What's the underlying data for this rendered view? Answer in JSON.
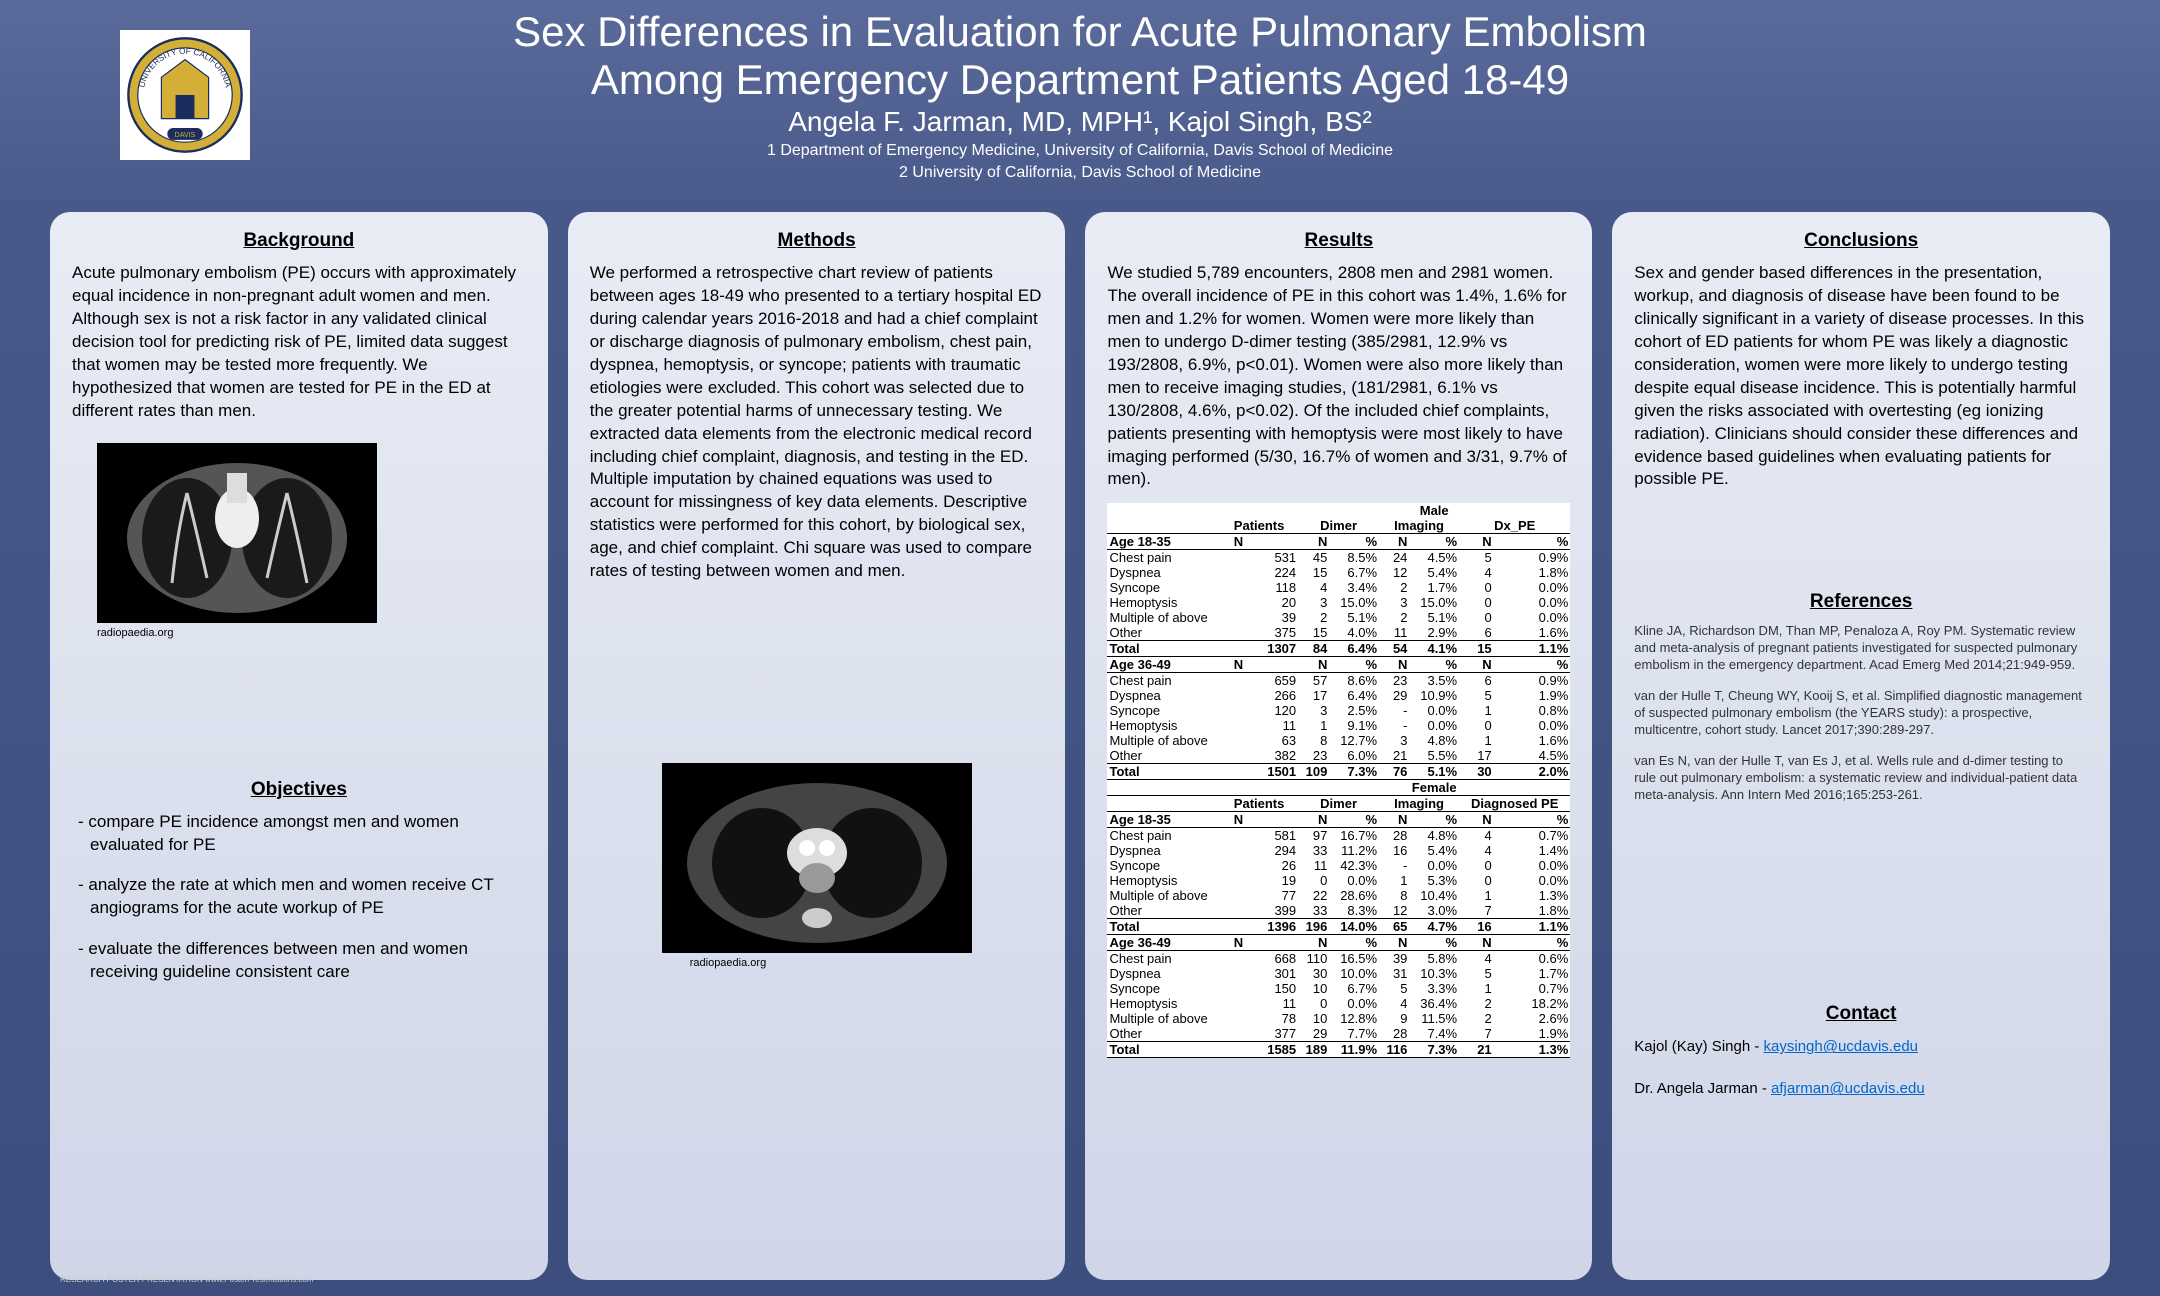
{
  "header": {
    "title_line1": "Sex Differences in Evaluation for Acute Pulmonary Embolism",
    "title_line2": "Among Emergency Department Patients Aged 18-49",
    "authors": "Angela F. Jarman, MD, MPH¹, Kajol Singh, BS²",
    "affil1": "1 Department of Emergency Medicine, University of California, Davis School of Medicine",
    "affil2": "2 University of California, Davis School of Medicine"
  },
  "background": {
    "heading": "Background",
    "text": "Acute pulmonary embolism (PE) occurs with approximately equal incidence in non-pregnant adult women and men. Although sex is not a risk factor in any validated clinical decision tool for predicting risk of PE, limited data suggest that women may be tested more frequently. We hypothesized that women are tested for PE in the ED at different rates than men.",
    "img_caption": "radiopaedia.org"
  },
  "objectives": {
    "heading": "Objectives",
    "items": [
      "compare PE incidence amongst men and women evaluated for PE",
      "analyze the rate at which men and women receive CT angiograms for the acute workup of PE",
      "evaluate the differences between men and women receiving guideline  consistent care"
    ]
  },
  "methods": {
    "heading": "Methods",
    "text": "We performed a retrospective chart review of patients between ages 18-49 who presented to a tertiary hospital ED during calendar years 2016-2018 and had a chief complaint or discharge diagnosis of pulmonary embolism, chest pain, dyspnea, hemoptysis, or syncope; patients with traumatic etiologies were excluded. This cohort was selected due to the greater potential harms of unnecessary testing. We extracted data elements from the electronic medical record including chief complaint, diagnosis, and testing in the ED. Multiple imputation by chained equations was used to account for missingness of key data elements. Descriptive statistics were performed for this cohort, by biological sex, age, and chief complaint. Chi square was used to compare rates of testing between women and men.",
    "img_caption": "radiopaedia.org"
  },
  "results": {
    "heading": "Results",
    "text": "We studied 5,789 encounters, 2808 men and 2981 women. The overall incidence of PE in this cohort was 1.4%, 1.6% for men and 1.2% for women. Women were more likely than men to undergo D-dimer testing (385/2981, 12.9% vs 193/2808, 6.9%, p<0.01). Women were also more likely than men to receive imaging studies, (181/2981, 6.1% vs 130/2808, 4.6%, p<0.02). Of the included chief complaints, patients presenting with hemoptysis were most likely to have imaging performed (5/30, 16.7% of women and 3/31, 9.7% of men)."
  },
  "table": {
    "male_label": "Male",
    "female_label": "Female",
    "col_headers": [
      "Patients",
      "Dimer",
      "Imaging",
      "Dx_PE"
    ],
    "col_headers_f": [
      "Patients",
      "Dimer",
      "Imaging",
      "Diagnosed PE"
    ],
    "sections": [
      {
        "label": "Age 18-35",
        "sex": "m",
        "rows": [
          [
            "Chest pain",
            "531",
            "45",
            "8.5%",
            "24",
            "4.5%",
            "5",
            "0.9%"
          ],
          [
            "Dyspnea",
            "224",
            "15",
            "6.7%",
            "12",
            "5.4%",
            "4",
            "1.8%"
          ],
          [
            "Syncope",
            "118",
            "4",
            "3.4%",
            "2",
            "1.7%",
            "0",
            "0.0%"
          ],
          [
            "Hemoptysis",
            "20",
            "3",
            "15.0%",
            "3",
            "15.0%",
            "0",
            "0.0%"
          ],
          [
            "Multiple of above",
            "39",
            "2",
            "5.1%",
            "2",
            "5.1%",
            "0",
            "0.0%"
          ],
          [
            "Other",
            "375",
            "15",
            "4.0%",
            "11",
            "2.9%",
            "6",
            "1.6%"
          ],
          [
            "Total",
            "1307",
            "84",
            "6.4%",
            "54",
            "4.1%",
            "15",
            "1.1%"
          ]
        ]
      },
      {
        "label": "Age 36-49",
        "sex": "m",
        "rows": [
          [
            "Chest pain",
            "659",
            "57",
            "8.6%",
            "23",
            "3.5%",
            "6",
            "0.9%"
          ],
          [
            "Dyspnea",
            "266",
            "17",
            "6.4%",
            "29",
            "10.9%",
            "5",
            "1.9%"
          ],
          [
            "Syncope",
            "120",
            "3",
            "2.5%",
            "-",
            "0.0%",
            "1",
            "0.8%"
          ],
          [
            "Hemoptysis",
            "11",
            "1",
            "9.1%",
            "-",
            "0.0%",
            "0",
            "0.0%"
          ],
          [
            "Multiple of above",
            "63",
            "8",
            "12.7%",
            "3",
            "4.8%",
            "1",
            "1.6%"
          ],
          [
            "Other",
            "382",
            "23",
            "6.0%",
            "21",
            "5.5%",
            "17",
            "4.5%"
          ],
          [
            "Total",
            "1501",
            "109",
            "7.3%",
            "76",
            "5.1%",
            "30",
            "2.0%"
          ]
        ]
      },
      {
        "label": "Age 18-35",
        "sex": "f",
        "rows": [
          [
            "Chest pain",
            "581",
            "97",
            "16.7%",
            "28",
            "4.8%",
            "4",
            "0.7%"
          ],
          [
            "Dyspnea",
            "294",
            "33",
            "11.2%",
            "16",
            "5.4%",
            "4",
            "1.4%"
          ],
          [
            "Syncope",
            "26",
            "11",
            "42.3%",
            "-",
            "0.0%",
            "0",
            "0.0%"
          ],
          [
            "Hemoptysis",
            "19",
            "0",
            "0.0%",
            "1",
            "5.3%",
            "0",
            "0.0%"
          ],
          [
            "Multiple of above",
            "77",
            "22",
            "28.6%",
            "8",
            "10.4%",
            "1",
            "1.3%"
          ],
          [
            "Other",
            "399",
            "33",
            "8.3%",
            "12",
            "3.0%",
            "7",
            "1.8%"
          ],
          [
            "Total",
            "1396",
            "196",
            "14.0%",
            "65",
            "4.7%",
            "16",
            "1.1%"
          ]
        ]
      },
      {
        "label": "Age 36-49",
        "sex": "f",
        "rows": [
          [
            "Chest pain",
            "668",
            "110",
            "16.5%",
            "39",
            "5.8%",
            "4",
            "0.6%"
          ],
          [
            "Dyspnea",
            "301",
            "30",
            "10.0%",
            "31",
            "10.3%",
            "5",
            "1.7%"
          ],
          [
            "Syncope",
            "150",
            "10",
            "6.7%",
            "5",
            "3.3%",
            "1",
            "0.7%"
          ],
          [
            "Hemoptysis",
            "11",
            "0",
            "0.0%",
            "4",
            "36.4%",
            "2",
            "18.2%"
          ],
          [
            "Multiple of above",
            "78",
            "10",
            "12.8%",
            "9",
            "11.5%",
            "2",
            "2.6%"
          ],
          [
            "Other",
            "377",
            "29",
            "7.7%",
            "28",
            "7.4%",
            "7",
            "1.9%"
          ],
          [
            "Total",
            "1585",
            "189",
            "11.9%",
            "116",
            "7.3%",
            "21",
            "1.3%"
          ]
        ]
      }
    ]
  },
  "conclusions": {
    "heading": "Conclusions",
    "text": "Sex and gender based differences in the presentation, workup, and diagnosis of disease have been found to be clinically significant in a variety of disease processes. In this cohort of ED patients for whom PE was likely a diagnostic consideration, women were more likely to undergo testing despite equal disease incidence. This is potentially harmful given the risks associated with overtesting (eg ionizing radiation). Clinicians should consider these differences and evidence based guidelines when evaluating patients for possible PE."
  },
  "references": {
    "heading": "References",
    "items": [
      "Kline JA, Richardson DM, Than MP, Penaloza A, Roy PM. Systematic review and meta-analysis of pregnant patients investigated for suspected pulmonary embolism in the emergency department. Acad Emerg Med 2014;21:949-959.",
      "van der Hulle T, Cheung WY, Kooij S, et al. Simplified diagnostic management of suspected pulmonary embolism (the YEARS study): a prospective, multicentre, cohort study. Lancet 2017;390:289-297.",
      "van Es N, van der Hulle T, van Es J, et al. Wells rule and d-dimer testing to rule out pulmonary embolism: a systematic review and individual-patient data meta-analysis. Ann Intern Med 2016;165:253-261."
    ]
  },
  "contact": {
    "heading": "Contact",
    "items": [
      {
        "name": "Kajol (Kay) Singh - ",
        "email": "kaysingh@ucdavis.edu"
      },
      {
        "name": "Dr. Angela Jarman - ",
        "email": "afjarman@ucdavis.edu"
      }
    ]
  },
  "footer": "RESEARCH POSTER PRESENTATION\nwww.PosterPresentations.com",
  "colors": {
    "bg_top": "#5a6a9a",
    "bg_bottom": "#3d4d7d",
    "panel_top": "#e8ecf5",
    "panel_bottom": "#d0d6e8",
    "link": "#0066cc",
    "uc_gold": "#d4af37",
    "uc_blue": "#1a2d5c"
  }
}
